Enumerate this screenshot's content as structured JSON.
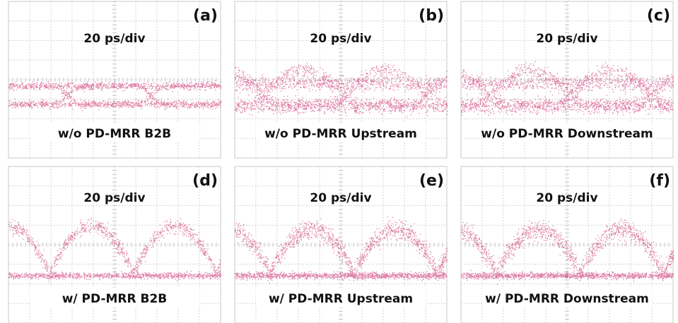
{
  "panels": [
    {
      "label": "(a)",
      "scale": "20 ps/div",
      "caption": "w/o PD-MRR B2B"
    },
    {
      "label": "(b)",
      "scale": "20 ps/div",
      "caption": "w/o PD-MRR Upstream"
    },
    {
      "label": "(c)",
      "scale": "20 ps/div",
      "caption": "w/o PD-MRR Downstream"
    },
    {
      "label": "(d)",
      "scale": "20 ps/div",
      "caption": "w/ PD-MRR B2B"
    },
    {
      "label": "(e)",
      "scale": "20 ps/div",
      "caption": "w/ PD-MRR Upstream"
    },
    {
      "label": "(f)",
      "scale": "20 ps/div",
      "caption": "w/ PD-MRR Downstream"
    }
  ]
}
